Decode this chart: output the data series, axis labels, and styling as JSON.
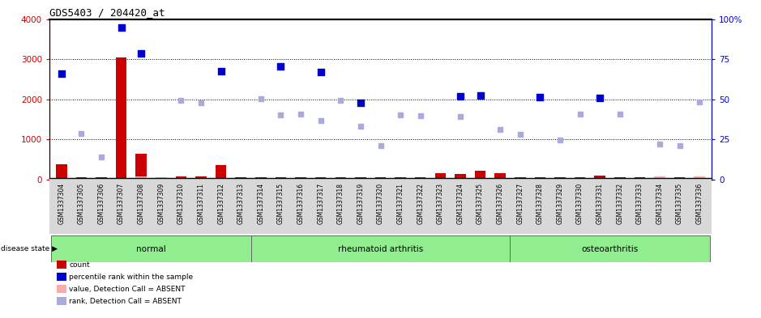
{
  "title": "GDS5403 / 204420_at",
  "samples": [
    "GSM1337304",
    "GSM1337305",
    "GSM1337306",
    "GSM1337307",
    "GSM1337308",
    "GSM1337309",
    "GSM1337310",
    "GSM1337311",
    "GSM1337312",
    "GSM1337313",
    "GSM1337314",
    "GSM1337315",
    "GSM1337316",
    "GSM1337317",
    "GSM1337318",
    "GSM1337319",
    "GSM1337320",
    "GSM1337321",
    "GSM1337322",
    "GSM1337323",
    "GSM1337324",
    "GSM1337325",
    "GSM1337326",
    "GSM1337327",
    "GSM1337328",
    "GSM1337329",
    "GSM1337330",
    "GSM1337331",
    "GSM1337332",
    "GSM1337333",
    "GSM1337334",
    "GSM1337335",
    "GSM1337336"
  ],
  "count_bars": [
    380,
    55,
    55,
    3050,
    640,
    55,
    80,
    85,
    370,
    55,
    55,
    55,
    55,
    55,
    55,
    55,
    55,
    55,
    55,
    155,
    140,
    215,
    170,
    55,
    55,
    55,
    55,
    95,
    55,
    55,
    55,
    55,
    85
  ],
  "count_is_absent": [
    false,
    false,
    false,
    false,
    false,
    true,
    false,
    false,
    false,
    false,
    false,
    false,
    false,
    false,
    false,
    false,
    false,
    false,
    false,
    false,
    false,
    false,
    false,
    false,
    false,
    false,
    false,
    false,
    false,
    false,
    true,
    false,
    false
  ],
  "pct_rank_pts": [
    2650,
    null,
    null,
    3800,
    3150,
    null,
    null,
    null,
    2700,
    null,
    null,
    2820,
    null,
    2680,
    null,
    1920,
    null,
    null,
    null,
    null,
    2080,
    2100,
    null,
    null,
    2050,
    null,
    null,
    2030,
    null,
    null,
    null,
    null,
    null
  ],
  "rank_absent_pts": [
    null,
    1150,
    560,
    null,
    null,
    null,
    1980,
    1920,
    null,
    null,
    2020,
    1620,
    1640,
    1470,
    1980,
    1340,
    850,
    1610,
    1590,
    null,
    1580,
    null,
    1250,
    1120,
    null,
    980,
    1630,
    null,
    1640,
    null,
    880,
    840,
    1940
  ],
  "value_absent_bars": [
    null,
    null,
    null,
    null,
    80,
    null,
    null,
    null,
    null,
    null,
    null,
    null,
    null,
    null,
    null,
    null,
    null,
    null,
    null,
    null,
    null,
    null,
    null,
    null,
    null,
    null,
    null,
    null,
    null,
    null,
    80,
    null,
    80
  ],
  "group_names": [
    "normal",
    "rheumatoid arthritis",
    "osteoarthritis"
  ],
  "group_starts": [
    0,
    10,
    23
  ],
  "group_ends": [
    10,
    23,
    33
  ],
  "group_color": "#90EE90",
  "ylim_left": [
    0,
    4000
  ],
  "ylim_right": [
    0,
    100
  ],
  "yticks_left": [
    0,
    1000,
    2000,
    3000,
    4000
  ],
  "ytick_labels_left": [
    "0",
    "1000",
    "2000",
    "3000",
    "4000"
  ],
  "yticks_right": [
    0,
    25,
    50,
    75,
    100
  ],
  "ytick_labels_right": [
    "0",
    "25",
    "50",
    "75",
    "100%"
  ],
  "left_color": "#CC0000",
  "right_color": "#0000CC",
  "absent_rank_color": "#AAAADD",
  "absent_value_color": "#FFAAAA",
  "grid_lines": [
    1000,
    2000,
    3000
  ],
  "legend_labels": [
    "count",
    "percentile rank within the sample",
    "value, Detection Call = ABSENT",
    "rank, Detection Call = ABSENT"
  ],
  "legend_colors": [
    "#CC0000",
    "#0000CC",
    "#FFAAAA",
    "#AAAADD"
  ],
  "xtick_bg_color": "#D8D8D8"
}
